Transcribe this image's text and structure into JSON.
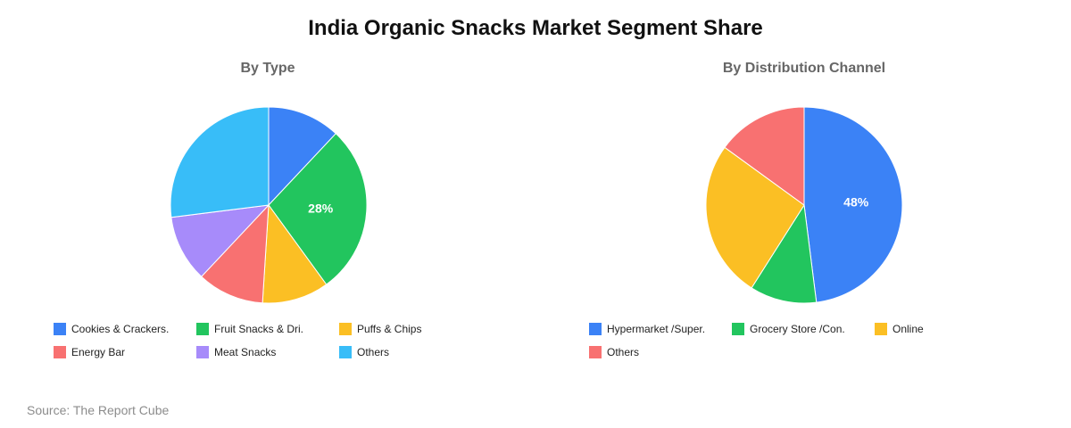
{
  "title": "India Organic Snacks Market Segment Share",
  "source": "Source: The Report Cube",
  "chart_data": [
    {
      "type": "pie",
      "title": "By Type",
      "categories": [
        "Cookies & Crackers.",
        "Fruit Snacks & Dri.",
        "Puffs & Chips",
        "Energy Bar",
        "Meat Snacks",
        "Others"
      ],
      "values": [
        12,
        28,
        11,
        11,
        11,
        27
      ],
      "colors": [
        "#3b82f6",
        "#22c55e",
        "#fbbf24",
        "#f87171",
        "#a78bfa",
        "#38bdf8"
      ],
      "wedge_order": [
        0,
        1,
        2,
        3,
        4,
        5
      ],
      "slice_labels": [
        "",
        "28%",
        "",
        "",
        "",
        ""
      ],
      "legend": "bottom"
    },
    {
      "type": "pie",
      "title": "By Distribution Channel",
      "categories": [
        "Hypermarket /Super.",
        "Grocery Store /Con.",
        "Online",
        "Others"
      ],
      "values": [
        48,
        11,
        26,
        15
      ],
      "colors": [
        "#3b82f6",
        "#22c55e",
        "#fbbf24",
        "#f87171"
      ],
      "wedge_order": [
        0,
        1,
        2,
        3
      ],
      "slice_labels": [
        "48%",
        "",
        "",
        ""
      ],
      "legend": "bottom"
    }
  ]
}
